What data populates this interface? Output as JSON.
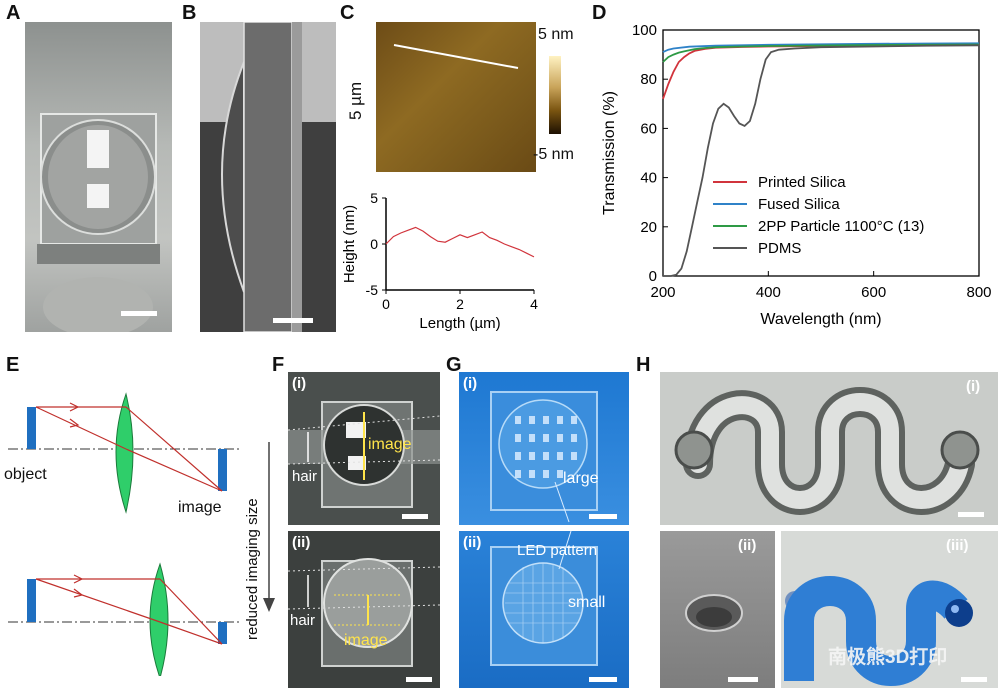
{
  "panel_labels": {
    "a": "A",
    "b": "B",
    "c": "C",
    "d": "D",
    "e": "E",
    "f": "F",
    "g": "G",
    "h": "H"
  },
  "panel_c": {
    "map_ylabel": "5 µm",
    "colorbar_top": "5 nm",
    "colorbar_bottom": "-5 nm",
    "profile_ylabel": "Height (nm)",
    "profile_xlabel": "Length (µm)",
    "profile_yticks": [
      "5",
      "0",
      "-5"
    ],
    "profile_xticks": [
      "0",
      "2",
      "4"
    ]
  },
  "panel_e": {
    "object_label": "object",
    "image_label": "image",
    "arrow_label": "reduced imaging size"
  },
  "panel_f": {
    "sub_i": "(i)",
    "sub_ii": "(ii)",
    "hair_label": "hair",
    "image_label": "image"
  },
  "panel_g": {
    "sub_i": "(i)",
    "sub_ii": "(ii)",
    "large_label": "large",
    "led_label": "LED pattern",
    "small_label": "small"
  },
  "panel_h": {
    "sub_i": "(i)",
    "sub_ii": "(ii)",
    "sub_iii": "(iii)",
    "watermark": "南极熊3D打印"
  },
  "colors": {
    "printed_silica": "#d1343c",
    "fused_silica": "#2f82c8",
    "twopp": "#2e9a45",
    "pdms": "#555555",
    "lens_green": "#2fce6a",
    "object_blue": "#1f6fc0",
    "ray_red": "#c0302c",
    "yellow": "#ffe44a"
  },
  "chart_data": [
    {
      "type": "line",
      "panel": "C (profile)",
      "xlabel": "Length (µm)",
      "ylabel": "Height (nm)",
      "xlim": [
        0,
        4
      ],
      "ylim": [
        -5,
        5
      ],
      "series": [
        {
          "values_x": [
            0,
            0.2,
            0.4,
            0.6,
            0.8,
            1.0,
            1.2,
            1.4,
            1.6,
            1.8,
            2.0,
            2.2,
            2.4,
            2.6,
            2.8,
            3.0,
            3.2,
            3.4,
            3.6,
            3.8,
            4.0
          ],
          "values_y": [
            0,
            0.8,
            1.2,
            1.5,
            1.8,
            1.4,
            0.8,
            0.3,
            0.2,
            0.6,
            1.0,
            0.7,
            1.0,
            1.3,
            0.7,
            0.4,
            0.0,
            -0.3,
            -0.6,
            -1.0,
            -1.4
          ]
        }
      ]
    },
    {
      "type": "line",
      "panel": "D",
      "xlabel": "Wavelength (nm)",
      "ylabel": "Transmission (%)",
      "xlim": [
        200,
        800
      ],
      "ylim": [
        0,
        100
      ],
      "xticks": [
        200,
        400,
        600,
        800
      ],
      "yticks": [
        0,
        20,
        40,
        60,
        80,
        100
      ],
      "legend_position": "bottom-right",
      "series": [
        {
          "name": "Printed Silica",
          "x": [
            200,
            210,
            220,
            230,
            240,
            250,
            260,
            280,
            300,
            350,
            400,
            500,
            600,
            700,
            800
          ],
          "y": [
            72,
            78,
            83,
            87,
            89,
            90.5,
            91.5,
            92.3,
            92.8,
            93.1,
            93.3,
            93.5,
            93.8,
            94,
            94.2
          ]
        },
        {
          "name": "Fused Silica",
          "x": [
            200,
            210,
            220,
            250,
            300,
            400,
            500,
            600,
            700,
            800
          ],
          "y": [
            91,
            92,
            92.5,
            93.2,
            93.6,
            94,
            94.2,
            94.4,
            94.5,
            94.6
          ]
        },
        {
          "name": "2PP Particle 1100°C (13)",
          "x": [
            200,
            210,
            220,
            230,
            240,
            250,
            260,
            280,
            300,
            350,
            400,
            500,
            600,
            700,
            800
          ],
          "y": [
            87,
            89,
            90,
            90.8,
            91.3,
            91.8,
            92.2,
            92.7,
            93,
            93.3,
            93.5,
            93.7,
            93.9,
            94,
            94.1
          ]
        },
        {
          "name": "PDMS",
          "x": [
            200,
            215,
            225,
            235,
            245,
            255,
            265,
            275,
            285,
            295,
            305,
            315,
            325,
            335,
            345,
            355,
            365,
            375,
            385,
            395,
            405,
            420,
            450,
            500,
            600,
            700,
            800
          ],
          "y": [
            0,
            0,
            0.5,
            3,
            10,
            20,
            30,
            40,
            52,
            62,
            68,
            70,
            68.5,
            65,
            62,
            61,
            63,
            70,
            80,
            88,
            91,
            92,
            92.5,
            93,
            93.3,
            93.6,
            93.8
          ]
        }
      ]
    }
  ]
}
